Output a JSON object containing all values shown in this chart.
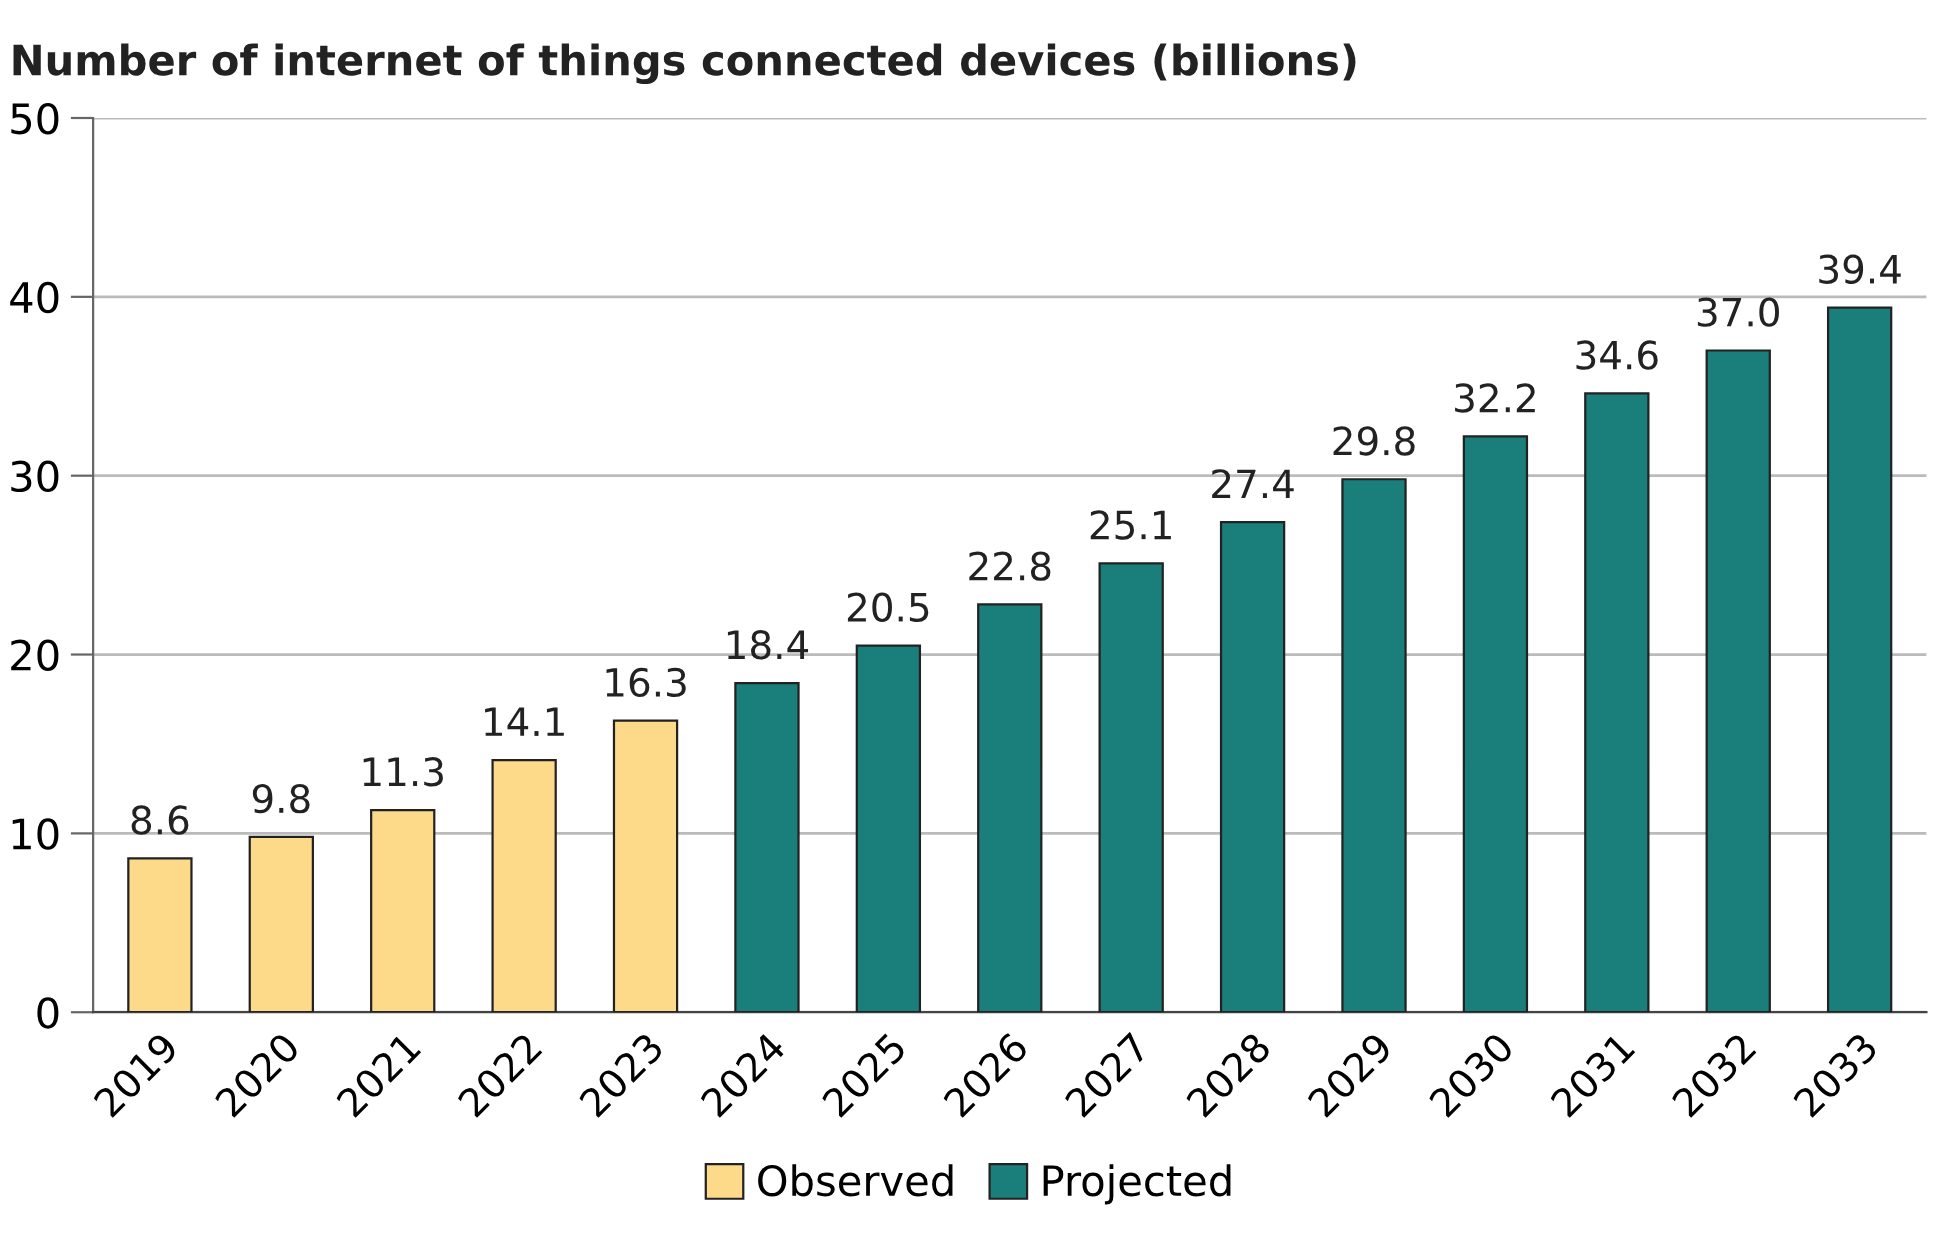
{
  "chart_data": {
    "type": "bar",
    "title": "Number of internet of things connected devices (billions)",
    "categories": [
      "2019",
      "2020",
      "2021",
      "2022",
      "2023",
      "2024",
      "2025",
      "2026",
      "2027",
      "2028",
      "2029",
      "2030",
      "2031",
      "2032",
      "2033"
    ],
    "series": [
      {
        "name": "Observed",
        "color": "#fdd98a",
        "values": [
          8.6,
          9.8,
          11.3,
          14.1,
          16.3,
          null,
          null,
          null,
          null,
          null,
          null,
          null,
          null,
          null,
          null
        ],
        "value_labels": [
          "8.6",
          "9.8",
          "11.3",
          "14.1",
          "16.3",
          null,
          null,
          null,
          null,
          null,
          null,
          null,
          null,
          null,
          null
        ]
      },
      {
        "name": "Projected",
        "color": "#1a7f7a",
        "values": [
          null,
          null,
          null,
          null,
          null,
          18.4,
          20.5,
          22.8,
          25.1,
          27.4,
          29.8,
          32.2,
          34.6,
          37.0,
          39.4
        ],
        "value_labels": [
          null,
          null,
          null,
          null,
          null,
          "18.4",
          "20.5",
          "22.8",
          "25.1",
          "27.4",
          "29.8",
          "32.2",
          "34.6",
          "37.0",
          "39.4"
        ]
      }
    ],
    "ylim": [
      0,
      50
    ],
    "yticks": [
      0,
      10,
      20,
      30,
      40,
      50
    ],
    "grid": "y",
    "legend": "bottom"
  }
}
